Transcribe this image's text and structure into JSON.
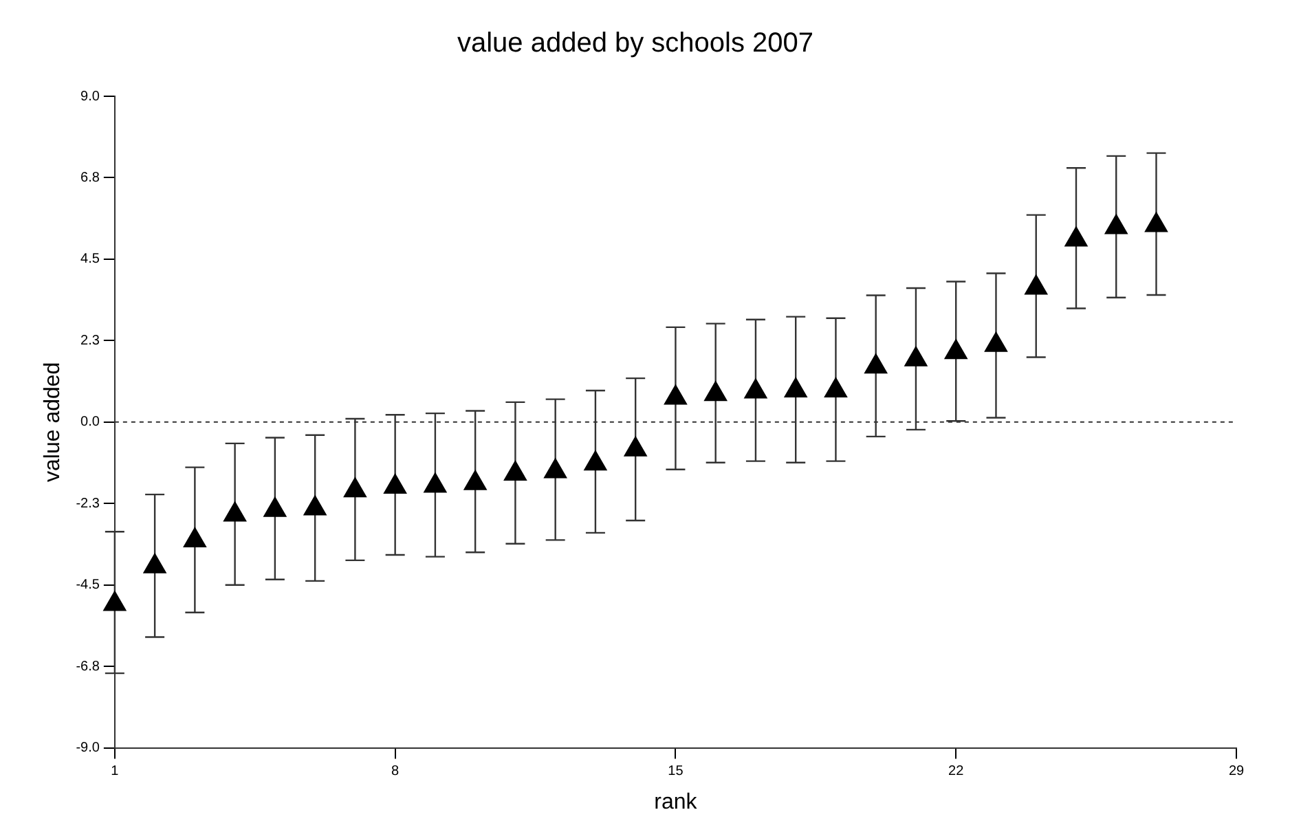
{
  "chart_data": {
    "type": "scatter",
    "title": "value added by schools 2007",
    "xlabel": "rank",
    "ylabel": "value added",
    "marker": "triangle",
    "color": "#000000",
    "x": [
      1,
      2,
      3,
      4,
      5,
      6,
      7,
      8,
      9,
      10,
      11,
      12,
      13,
      14,
      15,
      16,
      17,
      18,
      19,
      20,
      21,
      22,
      23,
      24,
      25,
      26,
      27
    ],
    "values": [
      -5.03,
      -3.99,
      -3.27,
      -2.56,
      -2.43,
      -2.39,
      -1.89,
      -1.79,
      -1.76,
      -1.69,
      -1.43,
      -1.36,
      -1.15,
      -0.76,
      0.67,
      0.77,
      0.84,
      0.87,
      0.87,
      1.53,
      1.73,
      1.93,
      2.13,
      3.71,
      5.04,
      5.38,
      5.44
    ],
    "errors": [
      [
        -6.94,
        -3.03
      ],
      [
        -5.94,
        -2.0
      ],
      [
        -5.26,
        -1.25
      ],
      [
        -4.5,
        -0.59
      ],
      [
        -4.35,
        -0.43
      ],
      [
        -4.39,
        -0.36
      ],
      [
        -3.82,
        0.09
      ],
      [
        -3.67,
        0.2
      ],
      [
        -3.72,
        0.24
      ],
      [
        -3.6,
        0.31
      ],
      [
        -3.36,
        0.55
      ],
      [
        -3.26,
        0.63
      ],
      [
        -3.06,
        0.87
      ],
      [
        -2.72,
        1.21
      ],
      [
        -1.31,
        2.62
      ],
      [
        -1.12,
        2.72
      ],
      [
        -1.08,
        2.83
      ],
      [
        -1.12,
        2.91
      ],
      [
        -1.08,
        2.87
      ],
      [
        -0.4,
        3.5
      ],
      [
        -0.21,
        3.7
      ],
      [
        0.03,
        3.88
      ],
      [
        0.12,
        4.11
      ],
      [
        1.79,
        5.72
      ],
      [
        3.14,
        7.02
      ],
      [
        3.44,
        7.35
      ],
      [
        3.51,
        7.43
      ]
    ],
    "xlim": [
      1,
      29
    ],
    "xticks": [
      1,
      8,
      15,
      22,
      29
    ],
    "ylim": [
      -9,
      9
    ],
    "yticks": [
      {
        "value": -9,
        "label": "-9.0"
      },
      {
        "value": -6.75,
        "label": "-6.8"
      },
      {
        "value": -4.5,
        "label": "-4.5"
      },
      {
        "value": -2.25,
        "label": "-2.3"
      },
      {
        "value": 0,
        "label": "0.0"
      },
      {
        "value": 2.25,
        "label": "2.3"
      },
      {
        "value": 4.5,
        "label": "4.5"
      },
      {
        "value": 6.75,
        "label": "6.8"
      },
      {
        "value": 9,
        "label": "9.0"
      }
    ],
    "ref_lines": [
      {
        "axis": "y",
        "value": 0,
        "line_style": "dotted",
        "color": "#333333"
      }
    ]
  }
}
